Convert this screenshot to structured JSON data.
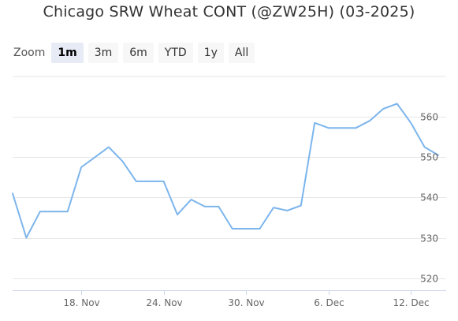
{
  "title": "Chicago SRW Wheat CONT (@ZW25H) (03-2025)",
  "zoom": {
    "label": "Zoom",
    "buttons": [
      {
        "label": "1m",
        "active": true
      },
      {
        "label": "3m",
        "active": false
      },
      {
        "label": "6m",
        "active": false
      },
      {
        "label": "YTD",
        "active": false
      },
      {
        "label": "1y",
        "active": false
      },
      {
        "label": "All",
        "active": false
      }
    ]
  },
  "colors": {
    "series_line": "#7cb5ec",
    "grid": "#e6e6e6",
    "axis_line": "#ccd6eb"
  },
  "chart_data": {
    "type": "line",
    "series": [
      {
        "x": [
          "2024-11-13",
          "2024-11-14",
          "2024-11-15",
          "2024-11-17",
          "2024-11-18",
          "2024-11-19",
          "2024-11-20",
          "2024-11-21",
          "2024-11-22",
          "2024-11-24",
          "2024-11-25",
          "2024-11-26",
          "2024-11-27",
          "2024-11-28",
          "2024-11-29",
          "2024-12-01",
          "2024-12-02",
          "2024-12-03",
          "2024-12-04",
          "2024-12-05",
          "2024-12-06",
          "2024-12-08",
          "2024-12-09",
          "2024-12-10",
          "2024-12-11",
          "2024-12-12",
          "2024-12-13",
          "2024-12-14"
        ],
        "y": [
          541.0,
          530.0,
          536.5,
          536.5,
          547.5,
          550.0,
          552.5,
          549.0,
          544.0,
          544.0,
          535.75,
          539.5,
          537.75,
          537.75,
          532.25,
          532.25,
          537.5,
          536.75,
          538.0,
          558.5,
          557.25,
          557.25,
          559.0,
          562.0,
          563.25,
          558.5,
          552.5,
          550.5
        ]
      }
    ],
    "x_ticks": [
      "18. Nov",
      "24. Nov",
      "30. Nov",
      "6. Dec",
      "12. Dec"
    ],
    "y_ticks": [
      520,
      530,
      540,
      550,
      560
    ],
    "ylim": [
      517,
      570
    ]
  }
}
